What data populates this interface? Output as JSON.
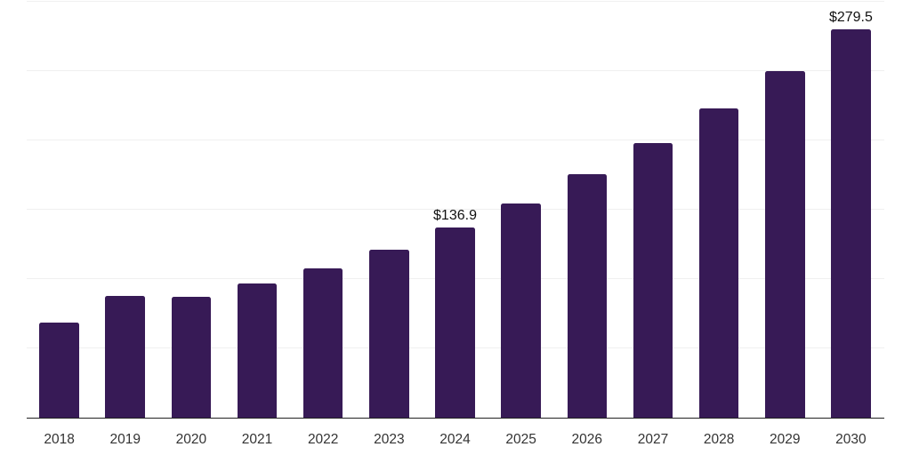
{
  "chart_data": {
    "type": "bar",
    "categories": [
      "2018",
      "2019",
      "2020",
      "2021",
      "2022",
      "2023",
      "2024",
      "2025",
      "2026",
      "2027",
      "2028",
      "2029",
      "2030"
    ],
    "values": [
      68.5,
      87.6,
      87.0,
      96.4,
      107.2,
      120.6,
      136.9,
      154.1,
      175.5,
      197.9,
      222.6,
      249.6,
      279.5
    ],
    "data_labels": [
      {
        "category": "2024",
        "text": "$136.9"
      },
      {
        "category": "2030",
        "text": "$279.5"
      }
    ],
    "xlabel": "",
    "ylabel": "",
    "ylim": [
      0,
      300
    ],
    "grid_step": 50,
    "grid": "horizontal-only",
    "legend": "none",
    "y_axis_labels_visible": false,
    "colors": {
      "bar": "#371A56",
      "grid_line": "#f0f0f0",
      "axis_line": "#222222",
      "tick_label": "#333333",
      "data_label": "#111111",
      "background": "#ffffff"
    }
  }
}
